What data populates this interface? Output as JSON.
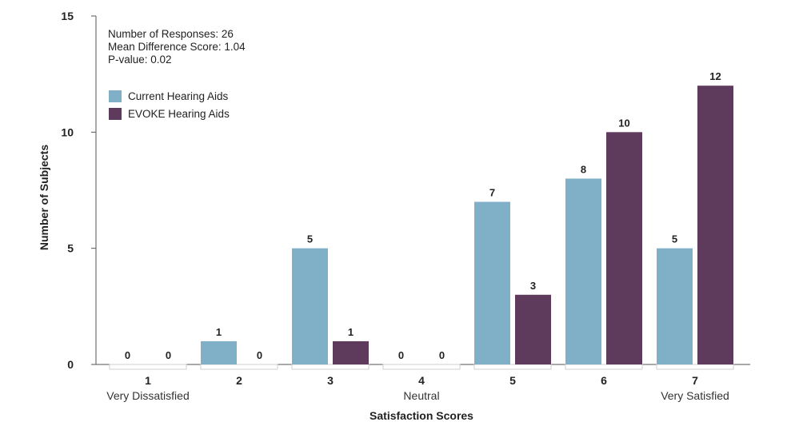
{
  "chart_data": {
    "type": "bar",
    "categories": [
      "1",
      "2",
      "3",
      "4",
      "5",
      "6",
      "7"
    ],
    "category_sublabels": [
      "Very Dissatisfied",
      "",
      "",
      "Neutral",
      "",
      "",
      "Very Satisfied"
    ],
    "series": [
      {
        "name": "Current Hearing Aids",
        "color": "#7fb0c8",
        "values": [
          0,
          1,
          5,
          0,
          7,
          8,
          5
        ]
      },
      {
        "name": "EVOKE Hearing Aids",
        "color": "#5e3a5c",
        "values": [
          0,
          0,
          1,
          0,
          3,
          10,
          12
        ]
      }
    ],
    "xlabel": "Satisfaction Scores",
    "ylabel": "Number of Subjects",
    "ylim": [
      0,
      15
    ],
    "yticks": [
      0,
      5,
      10,
      15
    ],
    "grid": false,
    "data_labels": true,
    "legend_position": "top-left",
    "annotations": [
      "Number of Responses: 26",
      "Mean Difference Score: 1.04",
      "P-value: 0.02"
    ]
  }
}
